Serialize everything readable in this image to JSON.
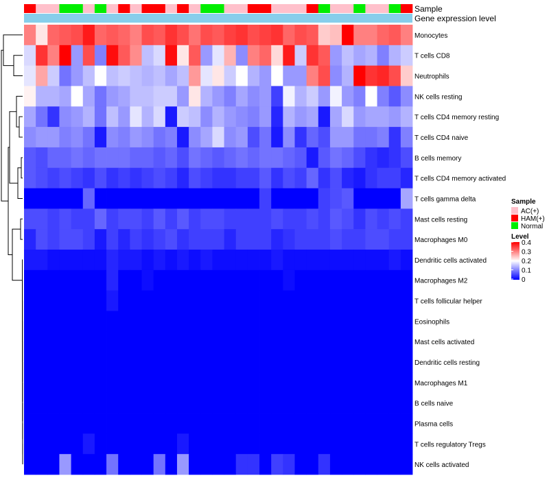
{
  "chart_data": {
    "type": "heatmap",
    "title": "",
    "annotation_rows": {
      "sample_label": "Sample",
      "expression_label": "Gene expression level"
    },
    "samples": [
      "HAM(+)",
      "AC(+)",
      "AC(+)",
      "Normal",
      "Normal",
      "AC(+)",
      "Normal",
      "AC(+)",
      "HAM(+)",
      "AC(+)",
      "HAM(+)",
      "HAM(+)",
      "AC(+)",
      "HAM(+)",
      "AC(+)",
      "Normal",
      "Normal",
      "AC(+)",
      "AC(+)",
      "HAM(+)",
      "HAM(+)",
      "AC(+)",
      "AC(+)",
      "AC(+)",
      "HAM(+)",
      "Normal",
      "AC(+)",
      "AC(+)",
      "Normal",
      "AC(+)",
      "AC(+)",
      "Normal",
      "HAM(+)"
    ],
    "rows": [
      "Monocytes",
      "T cells CD8",
      "Neutrophils",
      "NK cells resting",
      "T cells CD4 memory resting",
      "T cells CD4 naive",
      "B cells memory",
      "T cells CD4 memory activated",
      "T cells gamma delta",
      "Mast cells resting",
      "Macrophages M0",
      "Dendritic cells activated",
      "Macrophages M2",
      "T cells follicular helper",
      "Eosinophils",
      "Mast cells activated",
      "Dendritic cells resting",
      "Macrophages M1",
      "B cells naive",
      "Plasma cells",
      "T cells regulatory  Tregs",
      "NK cells activated"
    ],
    "values": [
      [
        0.3,
        0.22,
        0.32,
        0.33,
        0.34,
        0.38,
        0.32,
        0.33,
        0.32,
        0.3,
        0.34,
        0.33,
        0.36,
        0.34,
        0.31,
        0.34,
        0.33,
        0.35,
        0.36,
        0.34,
        0.35,
        0.36,
        0.32,
        0.34,
        0.33,
        0.24,
        0.25,
        0.4,
        0.3,
        0.3,
        0.32,
        0.33,
        0.3
      ],
      [
        0.17,
        0.36,
        0.3,
        0.4,
        0.12,
        0.34,
        0.1,
        0.39,
        0.33,
        0.29,
        0.15,
        0.17,
        0.39,
        0.22,
        0.33,
        0.12,
        0.18,
        0.26,
        0.11,
        0.3,
        0.32,
        0.23,
        0.38,
        0.16,
        0.36,
        0.33,
        0.12,
        0.15,
        0.13,
        0.14,
        0.1,
        0.14,
        0.16
      ],
      [
        0.18,
        0.27,
        0.16,
        0.09,
        0.12,
        0.15,
        0.2,
        0.15,
        0.16,
        0.15,
        0.14,
        0.15,
        0.13,
        0.15,
        0.28,
        0.18,
        0.22,
        0.16,
        0.2,
        0.14,
        0.12,
        0.2,
        0.12,
        0.12,
        0.3,
        0.34,
        0.11,
        0.14,
        0.4,
        0.36,
        0.37,
        0.34,
        0.24
      ],
      [
        0.21,
        0.14,
        0.14,
        0.13,
        0.2,
        0.13,
        0.09,
        0.12,
        0.13,
        0.15,
        0.15,
        0.16,
        0.16,
        0.12,
        0.22,
        0.14,
        0.12,
        0.1,
        0.13,
        0.11,
        0.12,
        0.05,
        0.19,
        0.14,
        0.16,
        0.12,
        0.19,
        0.12,
        0.1,
        0.2,
        0.1,
        0.07,
        0.11
      ],
      [
        0.13,
        0.09,
        0.04,
        0.11,
        0.12,
        0.14,
        0.09,
        0.15,
        0.12,
        0.18,
        0.14,
        0.17,
        0.02,
        0.16,
        0.15,
        0.11,
        0.14,
        0.12,
        0.11,
        0.1,
        0.12,
        0.03,
        0.14,
        0.12,
        0.13,
        0.02,
        0.13,
        0.17,
        0.12,
        0.13,
        0.13,
        0.12,
        0.14
      ],
      [
        0.11,
        0.12,
        0.12,
        0.1,
        0.11,
        0.09,
        0.02,
        0.11,
        0.1,
        0.12,
        0.11,
        0.09,
        0.1,
        0.02,
        0.11,
        0.13,
        0.17,
        0.11,
        0.12,
        0.06,
        0.09,
        0.02,
        0.11,
        0.04,
        0.08,
        0.06,
        0.12,
        0.12,
        0.09,
        0.09,
        0.1,
        0.04,
        0.1
      ],
      [
        0.07,
        0.06,
        0.08,
        0.08,
        0.09,
        0.08,
        0.09,
        0.09,
        0.09,
        0.08,
        0.08,
        0.07,
        0.08,
        0.06,
        0.09,
        0.08,
        0.07,
        0.08,
        0.09,
        0.08,
        0.09,
        0.09,
        0.08,
        0.07,
        0.02,
        0.07,
        0.09,
        0.08,
        0.06,
        0.04,
        0.03,
        0.04,
        0.06
      ],
      [
        0.07,
        0.06,
        0.05,
        0.06,
        0.05,
        0.04,
        0.06,
        0.04,
        0.05,
        0.04,
        0.05,
        0.06,
        0.05,
        0.03,
        0.06,
        0.05,
        0.04,
        0.04,
        0.05,
        0.05,
        0.07,
        0.04,
        0.06,
        0.05,
        0.08,
        0.04,
        0.06,
        0.03,
        0.02,
        0.04,
        0.05,
        0.05,
        0.03
      ],
      [
        0.0,
        0.0,
        0.0,
        0.0,
        0.0,
        0.08,
        0.0,
        0.0,
        0.0,
        0.0,
        0.0,
        0.0,
        0.0,
        0.0,
        0.0,
        0.0,
        0.0,
        0.0,
        0.0,
        0.0,
        0.05,
        0.0,
        0.0,
        0.0,
        0.0,
        0.05,
        0.06,
        0.07,
        0.0,
        0.0,
        0.0,
        0.0,
        0.13
      ],
      [
        0.06,
        0.06,
        0.05,
        0.06,
        0.05,
        0.05,
        0.08,
        0.05,
        0.06,
        0.06,
        0.05,
        0.07,
        0.05,
        0.07,
        0.05,
        0.06,
        0.06,
        0.05,
        0.05,
        0.05,
        0.05,
        0.06,
        0.05,
        0.05,
        0.06,
        0.05,
        0.07,
        0.06,
        0.04,
        0.06,
        0.05,
        0.06,
        0.05
      ],
      [
        0.03,
        0.06,
        0.05,
        0.06,
        0.06,
        0.05,
        0.02,
        0.05,
        0.03,
        0.05,
        0.04,
        0.05,
        0.06,
        0.04,
        0.05,
        0.05,
        0.05,
        0.03,
        0.05,
        0.05,
        0.05,
        0.03,
        0.04,
        0.05,
        0.05,
        0.05,
        0.06,
        0.05,
        0.05,
        0.06,
        0.06,
        0.05,
        0.05
      ],
      [
        0.02,
        0.02,
        0.01,
        0.01,
        0.01,
        0.01,
        0.01,
        0.03,
        0.02,
        0.02,
        0.01,
        0.02,
        0.01,
        0.02,
        0.01,
        0.02,
        0.01,
        0.01,
        0.01,
        0.01,
        0.01,
        0.02,
        0.01,
        0.01,
        0.01,
        0.01,
        0.01,
        0.01,
        0.01,
        0.01,
        0.01,
        0.02,
        0.01
      ],
      [
        0.0,
        0.0,
        0.0,
        0.0,
        0.0,
        0.0,
        0.0,
        0.03,
        0.0,
        0.0,
        0.01,
        0.0,
        0.0,
        0.0,
        0.0,
        0.0,
        0.0,
        0.0,
        0.0,
        0.0,
        0.0,
        0.0,
        0.01,
        0.0,
        0.0,
        0.0,
        0.0,
        0.0,
        0.0,
        0.0,
        0.0,
        0.0,
        0.0
      ],
      [
        0.0,
        0.0,
        0.0,
        0.0,
        0.0,
        0.0,
        0.0,
        0.02,
        0.0,
        0.0,
        0.0,
        0.0,
        0.0,
        0.0,
        0.0,
        0.0,
        0.0,
        0.0,
        0.0,
        0.0,
        0.0,
        0.0,
        0.0,
        0.0,
        0.0,
        0.0,
        0.0,
        0.0,
        0.0,
        0.0,
        0.0,
        0.0,
        0.0
      ],
      [
        0.0,
        0.0,
        0.0,
        0.0,
        0.0,
        0.0,
        0.0,
        0.0,
        0.0,
        0.0,
        0.0,
        0.0,
        0.0,
        0.0,
        0.0,
        0.0,
        0.0,
        0.0,
        0.0,
        0.0,
        0.0,
        0.0,
        0.0,
        0.0,
        0.0,
        0.0,
        0.0,
        0.0,
        0.0,
        0.0,
        0.0,
        0.0,
        0.0
      ],
      [
        0.0,
        0.0,
        0.0,
        0.0,
        0.0,
        0.0,
        0.0,
        0.0,
        0.0,
        0.0,
        0.0,
        0.0,
        0.0,
        0.0,
        0.0,
        0.0,
        0.0,
        0.0,
        0.0,
        0.0,
        0.0,
        0.0,
        0.0,
        0.0,
        0.0,
        0.0,
        0.0,
        0.0,
        0.0,
        0.0,
        0.0,
        0.0,
        0.0
      ],
      [
        0.0,
        0.0,
        0.0,
        0.0,
        0.0,
        0.0,
        0.0,
        0.0,
        0.0,
        0.0,
        0.0,
        0.0,
        0.0,
        0.0,
        0.0,
        0.0,
        0.0,
        0.0,
        0.0,
        0.0,
        0.0,
        0.0,
        0.0,
        0.0,
        0.0,
        0.0,
        0.0,
        0.0,
        0.0,
        0.0,
        0.0,
        0.0,
        0.0
      ],
      [
        0.0,
        0.0,
        0.0,
        0.0,
        0.0,
        0.0,
        0.0,
        0.0,
        0.0,
        0.0,
        0.0,
        0.0,
        0.0,
        0.0,
        0.0,
        0.0,
        0.0,
        0.0,
        0.0,
        0.0,
        0.0,
        0.0,
        0.0,
        0.0,
        0.0,
        0.0,
        0.0,
        0.0,
        0.0,
        0.0,
        0.0,
        0.0,
        0.0
      ],
      [
        0.0,
        0.0,
        0.0,
        0.0,
        0.0,
        0.0,
        0.0,
        0.0,
        0.0,
        0.0,
        0.0,
        0.0,
        0.0,
        0.0,
        0.0,
        0.0,
        0.0,
        0.0,
        0.0,
        0.0,
        0.0,
        0.0,
        0.0,
        0.0,
        0.0,
        0.0,
        0.0,
        0.0,
        0.0,
        0.0,
        0.0,
        0.0,
        0.0
      ],
      [
        0.0,
        0.0,
        0.0,
        0.0,
        0.0,
        0.0,
        0.0,
        0.0,
        0.0,
        0.0,
        0.0,
        0.0,
        0.0,
        0.0,
        0.0,
        0.0,
        0.0,
        0.0,
        0.0,
        0.0,
        0.0,
        0.0,
        0.0,
        0.0,
        0.0,
        0.0,
        0.0,
        0.0,
        0.0,
        0.0,
        0.0,
        0.0,
        0.0
      ],
      [
        0.0,
        0.0,
        0.0,
        0.0,
        0.0,
        0.02,
        0.0,
        0.0,
        0.0,
        0.0,
        0.0,
        0.0,
        0.0,
        0.02,
        0.0,
        0.0,
        0.0,
        0.0,
        0.0,
        0.0,
        0.0,
        0.0,
        0.0,
        0.0,
        0.0,
        0.0,
        0.0,
        0.0,
        0.0,
        0.0,
        0.0,
        0.0,
        0.0
      ],
      [
        0.0,
        0.0,
        0.0,
        0.12,
        0.0,
        0.0,
        0.0,
        0.09,
        0.0,
        0.0,
        0.0,
        0.09,
        0.0,
        0.12,
        0.0,
        0.0,
        0.0,
        0.0,
        0.04,
        0.04,
        0.0,
        0.05,
        0.04,
        0.0,
        0.0,
        0.04,
        0.0,
        0.0,
        0.0,
        0.0,
        0.0,
        0.0,
        0.0
      ]
    ],
    "legend": {
      "sample_title": "Sample",
      "groups": [
        {
          "name": "AC(+)",
          "color": "#FFC0CB"
        },
        {
          "name": "HAM(+)",
          "color": "#FF0000"
        },
        {
          "name": "Normal",
          "color": "#00EE00"
        }
      ],
      "level_title": "Level",
      "level_ticks": [
        "0.4",
        "0.3",
        "0.2",
        "0.1",
        "0"
      ],
      "level_range": [
        0,
        0.4
      ]
    },
    "colors": {
      "low": "#0000FF",
      "mid": "#FFFFFF",
      "high": "#FF0000",
      "expression_bar": "#87CEEB",
      "dendrogram": "#000000"
    }
  }
}
